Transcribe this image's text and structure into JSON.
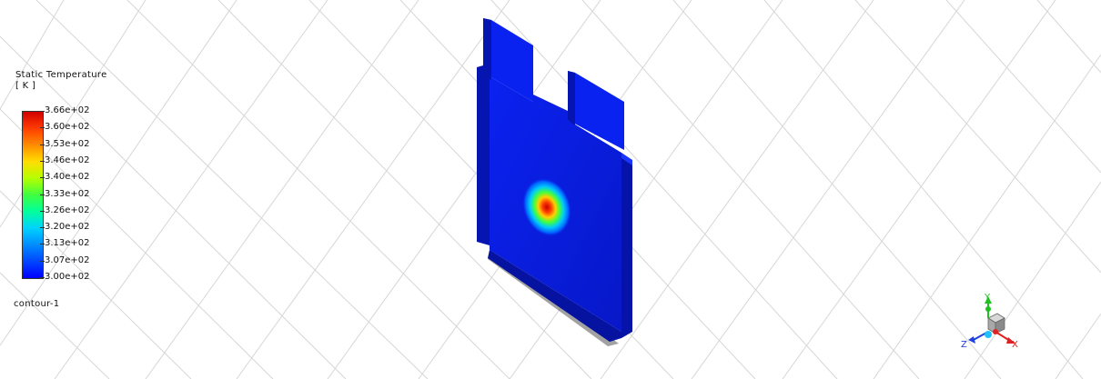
{
  "legend": {
    "title_line1": "Static Temperature",
    "title_line2": "[ K ]",
    "ticks": [
      "3.66e+02",
      "3.60e+02",
      "3.53e+02",
      "3.46e+02",
      "3.40e+02",
      "3.33e+02",
      "3.26e+02",
      "3.20e+02",
      "3.13e+02",
      "3.07e+02",
      "3.00e+02"
    ],
    "contour_name": "contour-1",
    "colormap_top": "#d20000",
    "colormap_bottom": "#0000ff"
  },
  "triad": {
    "x_label": "X",
    "y_label": "Y",
    "z_label": "Z",
    "x_color": "#e02020",
    "y_color": "#20c020",
    "z_color": "#2040e0"
  },
  "scene": {
    "body_color": "#0a1fe0",
    "grid_color": "#d8d8d8"
  }
}
